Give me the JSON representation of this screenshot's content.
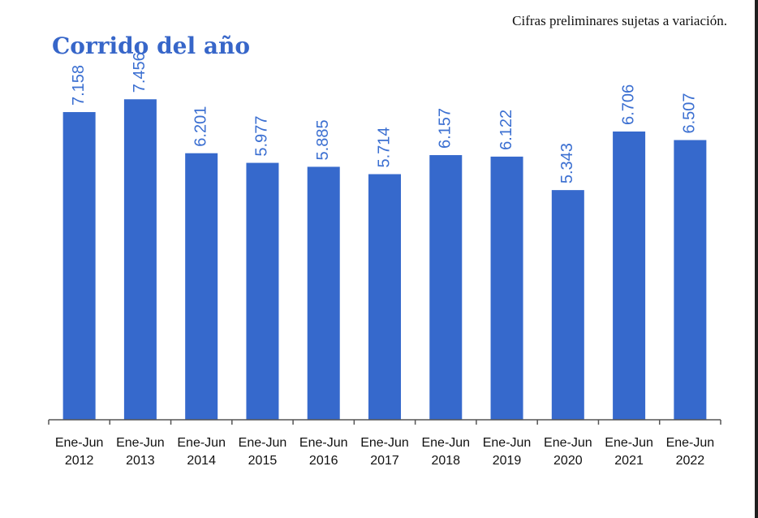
{
  "header": {
    "note": "Cifras preliminares sujetas a variación.",
    "title": "Corrido del año"
  },
  "colors": {
    "bar": "#3669cc",
    "label": "#3b6fd1",
    "title": "#3766c9"
  },
  "chart_data": {
    "type": "bar",
    "title": "Corrido del año",
    "categories": [
      [
        "Ene-Jun",
        "2012"
      ],
      [
        "Ene-Jun",
        "2013"
      ],
      [
        "Ene-Jun",
        "2014"
      ],
      [
        "Ene-Jun",
        "2015"
      ],
      [
        "Ene-Jun",
        "2016"
      ],
      [
        "Ene-Jun",
        "2017"
      ],
      [
        "Ene-Jun",
        "2018"
      ],
      [
        "Ene-Jun",
        "2019"
      ],
      [
        "Ene-Jun",
        "2020"
      ],
      [
        "Ene-Jun",
        "2021"
      ],
      [
        "Ene-Jun",
        "2022"
      ]
    ],
    "values": [
      7.158,
      7.456,
      6.201,
      5.977,
      5.885,
      5.714,
      6.157,
      6.122,
      5.343,
      6.706,
      6.507
    ],
    "value_labels": [
      "7.158",
      "7.456",
      "6.201",
      "5.977",
      "5.885",
      "5.714",
      "6.157",
      "6.122",
      "5.343",
      "6.706",
      "6.507"
    ],
    "xlabel": "",
    "ylabel": "",
    "ylim": [
      0,
      8.5
    ],
    "grid": false,
    "data_labels": "rotated-vertical"
  }
}
